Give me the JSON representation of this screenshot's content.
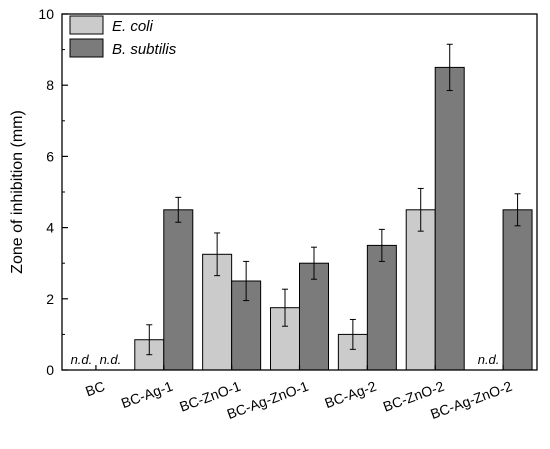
{
  "chart_data": {
    "type": "bar",
    "ylabel": "Zone of inhibition (mm)",
    "ylim": [
      0,
      10
    ],
    "yticks": [
      0,
      2,
      4,
      6,
      8,
      10
    ],
    "categories": [
      "BC",
      "BC-Ag-1",
      "BC-ZnO-1",
      "BC-Ag-ZnO-1",
      "BC-Ag-2",
      "BC-ZnO-2",
      "BC-Ag-ZnO-2"
    ],
    "series": [
      {
        "name": "E. coli",
        "color": "#cbcbcb",
        "values": [
          null,
          0.85,
          3.25,
          1.75,
          1.0,
          4.5,
          null
        ],
        "errors": [
          null,
          0.42,
          0.6,
          0.52,
          0.42,
          0.6,
          null
        ],
        "labels": [
          "n.d.",
          "",
          "",
          "",
          "",
          "",
          "n.d."
        ]
      },
      {
        "name": "B. subtilis",
        "color": "#7b7b7b",
        "values": [
          null,
          4.5,
          2.5,
          3.0,
          3.5,
          8.5,
          4.5
        ],
        "errors": [
          null,
          0.35,
          0.55,
          0.45,
          0.45,
          0.65,
          0.45
        ],
        "labels": [
          "n.d.",
          "",
          "",
          "",
          "",
          "",
          ""
        ]
      }
    ],
    "legend_position": "top-left"
  }
}
